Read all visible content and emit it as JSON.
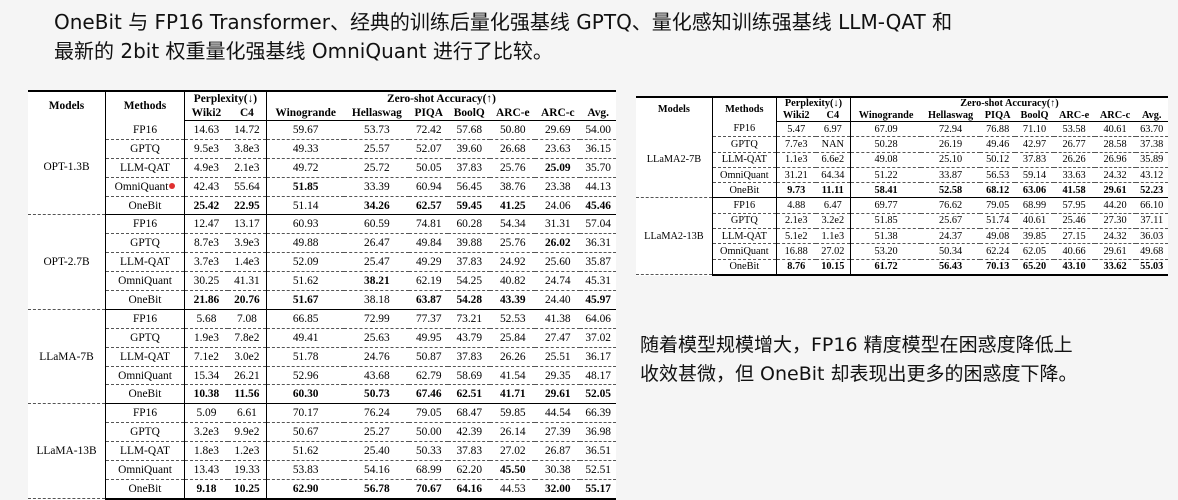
{
  "heading": {
    "line1": "OneBit 与 FP16 Transformer、经典的训练后量化强基线 GPTQ、量化感知训练强基线 LLM-QAT 和",
    "line2": "最新的 2bit 权重量化强基线 OmniQuant 进行了比较。"
  },
  "note": {
    "line1": "随着模型规模增大，FP16 精度模型在困惑度降低上",
    "line2": "收效甚微，但 OneBit 却表现出更多的困惑度下降。"
  },
  "table_header": {
    "models": "Models",
    "methods": "Methods",
    "perplexity": "Perplexity(↓)",
    "zeroshot": "Zero-shot Accuracy(↑)",
    "columns": [
      "Wiki2",
      "C4",
      "Winogrande",
      "Hellaswag",
      "PIQA",
      "BoolQ",
      "ARC-e",
      "ARC-c",
      "Avg."
    ]
  },
  "table1": {
    "groups": [
      {
        "model": "OPT-1.3B",
        "rows": [
          {
            "method": "FP16",
            "values": [
              "14.63",
              "14.72",
              "59.67",
              "53.73",
              "72.42",
              "57.68",
              "50.80",
              "29.69",
              "54.00"
            ],
            "bold": []
          },
          {
            "method": "GPTQ",
            "values": [
              "9.5e3",
              "3.8e3",
              "49.33",
              "25.57",
              "52.07",
              "39.60",
              "26.68",
              "23.63",
              "36.15"
            ],
            "bold": []
          },
          {
            "method": "LLM-QAT",
            "values": [
              "4.9e3",
              "2.1e3",
              "49.72",
              "25.72",
              "50.05",
              "37.83",
              "25.76",
              "25.09",
              "35.70"
            ],
            "bold": [
              7
            ]
          },
          {
            "method": "OmniQuant",
            "values": [
              "42.43",
              "55.64",
              "51.85",
              "33.39",
              "60.94",
              "56.45",
              "38.76",
              "23.38",
              "44.13"
            ],
            "bold": [
              2
            ]
          },
          {
            "method": "OneBit",
            "values": [
              "25.42",
              "22.95",
              "51.14",
              "34.26",
              "62.57",
              "59.45",
              "41.25",
              "24.06",
              "45.46"
            ],
            "bold": [
              0,
              1,
              3,
              4,
              5,
              6,
              8
            ]
          }
        ]
      },
      {
        "model": "OPT-2.7B",
        "rows": [
          {
            "method": "FP16",
            "values": [
              "12.47",
              "13.17",
              "60.93",
              "60.59",
              "74.81",
              "60.28",
              "54.34",
              "31.31",
              "57.04"
            ],
            "bold": []
          },
          {
            "method": "GPTQ",
            "values": [
              "8.7e3",
              "3.9e3",
              "49.88",
              "26.47",
              "49.84",
              "39.88",
              "25.76",
              "26.02",
              "36.31"
            ],
            "bold": [
              7
            ]
          },
          {
            "method": "LLM-QAT",
            "values": [
              "3.7e3",
              "1.4e3",
              "52.09",
              "25.47",
              "49.29",
              "37.83",
              "24.92",
              "25.60",
              "35.87"
            ],
            "bold": []
          },
          {
            "method": "OmniQuant",
            "values": [
              "30.25",
              "41.31",
              "51.62",
              "38.21",
              "62.19",
              "54.25",
              "40.82",
              "24.74",
              "45.31"
            ],
            "bold": [
              3
            ]
          },
          {
            "method": "OneBit",
            "values": [
              "21.86",
              "20.76",
              "51.67",
              "38.18",
              "63.87",
              "54.28",
              "43.39",
              "24.40",
              "45.97"
            ],
            "bold": [
              0,
              1,
              2,
              4,
              5,
              6,
              8
            ]
          }
        ]
      },
      {
        "model": "LLaMA-7B",
        "rows": [
          {
            "method": "FP16",
            "values": [
              "5.68",
              "7.08",
              "66.85",
              "72.99",
              "77.37",
              "73.21",
              "52.53",
              "41.38",
              "64.06"
            ],
            "bold": []
          },
          {
            "method": "GPTQ",
            "values": [
              "1.9e3",
              "7.8e2",
              "49.41",
              "25.63",
              "49.95",
              "43.79",
              "25.84",
              "27.47",
              "37.02"
            ],
            "bold": []
          },
          {
            "method": "LLM-QAT",
            "values": [
              "7.1e2",
              "3.0e2",
              "51.78",
              "24.76",
              "50.87",
              "37.83",
              "26.26",
              "25.51",
              "36.17"
            ],
            "bold": []
          },
          {
            "method": "OmniQuant",
            "values": [
              "15.34",
              "26.21",
              "52.96",
              "43.68",
              "62.79",
              "58.69",
              "41.54",
              "29.35",
              "48.17"
            ],
            "bold": []
          },
          {
            "method": "OneBit",
            "values": [
              "10.38",
              "11.56",
              "60.30",
              "50.73",
              "67.46",
              "62.51",
              "41.71",
              "29.61",
              "52.05"
            ],
            "bold": [
              0,
              1,
              2,
              3,
              4,
              5,
              6,
              7,
              8
            ]
          }
        ]
      },
      {
        "model": "LLaMA-13B",
        "rows": [
          {
            "method": "FP16",
            "values": [
              "5.09",
              "6.61",
              "70.17",
              "76.24",
              "79.05",
              "68.47",
              "59.85",
              "44.54",
              "66.39"
            ],
            "bold": []
          },
          {
            "method": "GPTQ",
            "values": [
              "3.2e3",
              "9.9e2",
              "50.67",
              "25.27",
              "50.00",
              "42.39",
              "26.14",
              "27.39",
              "36.98"
            ],
            "bold": []
          },
          {
            "method": "LLM-QAT",
            "values": [
              "1.8e3",
              "1.2e3",
              "51.62",
              "25.40",
              "50.33",
              "37.83",
              "27.02",
              "26.87",
              "36.51"
            ],
            "bold": []
          },
          {
            "method": "OmniQuant",
            "values": [
              "13.43",
              "19.33",
              "53.83",
              "54.16",
              "68.99",
              "62.20",
              "45.50",
              "30.38",
              "52.51"
            ],
            "bold": [
              6
            ]
          },
          {
            "method": "OneBit",
            "values": [
              "9.18",
              "10.25",
              "62.90",
              "56.78",
              "70.67",
              "64.16",
              "44.53",
              "32.00",
              "55.17"
            ],
            "bold": [
              0,
              1,
              2,
              3,
              4,
              5,
              7,
              8
            ]
          }
        ]
      }
    ]
  },
  "table2": {
    "groups": [
      {
        "model": "LLaMA2-7B",
        "rows": [
          {
            "method": "FP16",
            "values": [
              "5.47",
              "6.97",
              "67.09",
              "72.94",
              "76.88",
              "71.10",
              "53.58",
              "40.61",
              "63.70"
            ],
            "bold": []
          },
          {
            "method": "GPTQ",
            "values": [
              "7.7e3",
              "NAN",
              "50.28",
              "26.19",
              "49.46",
              "42.97",
              "26.77",
              "28.58",
              "37.38"
            ],
            "bold": []
          },
          {
            "method": "LLM-QAT",
            "values": [
              "1.1e3",
              "6.6e2",
              "49.08",
              "25.10",
              "50.12",
              "37.83",
              "26.26",
              "26.96",
              "35.89"
            ],
            "bold": []
          },
          {
            "method": "OmniQuant",
            "values": [
              "31.21",
              "64.34",
              "51.22",
              "33.87",
              "56.53",
              "59.14",
              "33.63",
              "24.32",
              "43.12"
            ],
            "bold": []
          },
          {
            "method": "OneBit",
            "values": [
              "9.73",
              "11.11",
              "58.41",
              "52.58",
              "68.12",
              "63.06",
              "41.58",
              "29.61",
              "52.23"
            ],
            "bold": [
              0,
              1,
              2,
              3,
              4,
              5,
              6,
              7,
              8
            ]
          }
        ]
      },
      {
        "model": "LLaMA2-13B",
        "rows": [
          {
            "method": "FP16",
            "values": [
              "4.88",
              "6.47",
              "69.77",
              "76.62",
              "79.05",
              "68.99",
              "57.95",
              "44.20",
              "66.10"
            ],
            "bold": []
          },
          {
            "method": "GPTQ",
            "values": [
              "2.1e3",
              "3.2e2",
              "51.85",
              "25.67",
              "51.74",
              "40.61",
              "25.46",
              "27.30",
              "37.11"
            ],
            "bold": []
          },
          {
            "method": "LLM-QAT",
            "values": [
              "5.1e2",
              "1.1e3",
              "51.38",
              "24.37",
              "49.08",
              "39.85",
              "27.15",
              "24.32",
              "36.03"
            ],
            "bold": []
          },
          {
            "method": "OmniQuant",
            "values": [
              "16.88",
              "27.02",
              "53.20",
              "50.34",
              "62.24",
              "62.05",
              "40.66",
              "29.61",
              "49.68"
            ],
            "bold": []
          },
          {
            "method": "OneBit",
            "values": [
              "8.76",
              "10.15",
              "61.72",
              "56.43",
              "70.13",
              "65.20",
              "43.10",
              "33.62",
              "55.03"
            ],
            "bold": [
              0,
              1,
              2,
              3,
              4,
              5,
              6,
              7,
              8
            ]
          }
        ]
      }
    ]
  }
}
